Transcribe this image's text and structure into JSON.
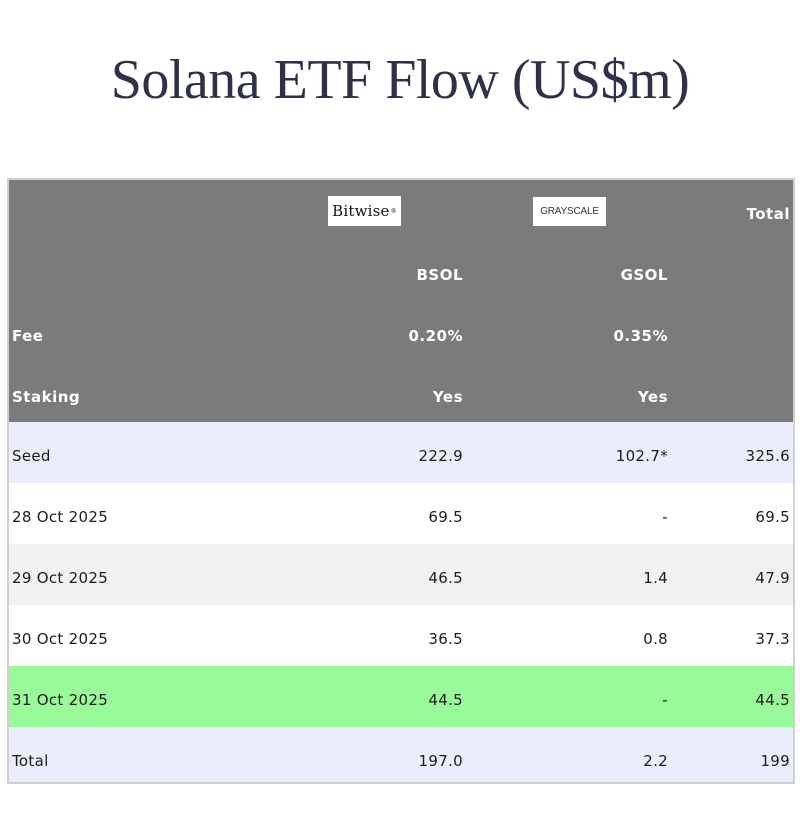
{
  "title": "Solana ETF Flow (US$m)",
  "header": {
    "bitwise_logo": "Bitwise",
    "grayscale_logo": "GRAYSCALE",
    "total_label": "Total",
    "tickers": [
      "BSOL",
      "GSOL"
    ],
    "fee": {
      "label": "Fee",
      "values": [
        "0.20%",
        "0.35%"
      ]
    },
    "staking": {
      "label": "Staking",
      "values": [
        "Yes",
        "Yes"
      ]
    }
  },
  "colors": {
    "header_bg": "#7b7b7b",
    "seed_row_bg": "#eaedfb",
    "alt_row_bg": "#f1f1f1",
    "white_row_bg": "#ffffff",
    "highlight_row_bg": "#99fa99",
    "total_row_bg": "#eaedfb"
  },
  "chart_data": {
    "type": "table",
    "title": "Solana ETF Flow (US$m)",
    "columns": [
      "",
      "BSOL",
      "GSOL",
      "Total"
    ],
    "rows": [
      {
        "label": "Seed",
        "values": [
          "222.9",
          "102.7*",
          "325.6"
        ],
        "bg": "#eaedfb"
      },
      {
        "label": "28 Oct 2025",
        "values": [
          "69.5",
          "-",
          "69.5"
        ],
        "bg": "#ffffff"
      },
      {
        "label": "29 Oct 2025",
        "values": [
          "46.5",
          "1.4",
          "47.9"
        ],
        "bg": "#f1f1f1"
      },
      {
        "label": "30 Oct 2025",
        "values": [
          "36.5",
          "0.8",
          "37.3"
        ],
        "bg": "#ffffff"
      },
      {
        "label": "31 Oct 2025",
        "values": [
          "44.5",
          "-",
          "44.5"
        ],
        "bg": "#99fa99"
      },
      {
        "label": "Total",
        "values": [
          "197.0",
          "2.2",
          "199"
        ],
        "bg": "#eaedfb"
      }
    ]
  }
}
